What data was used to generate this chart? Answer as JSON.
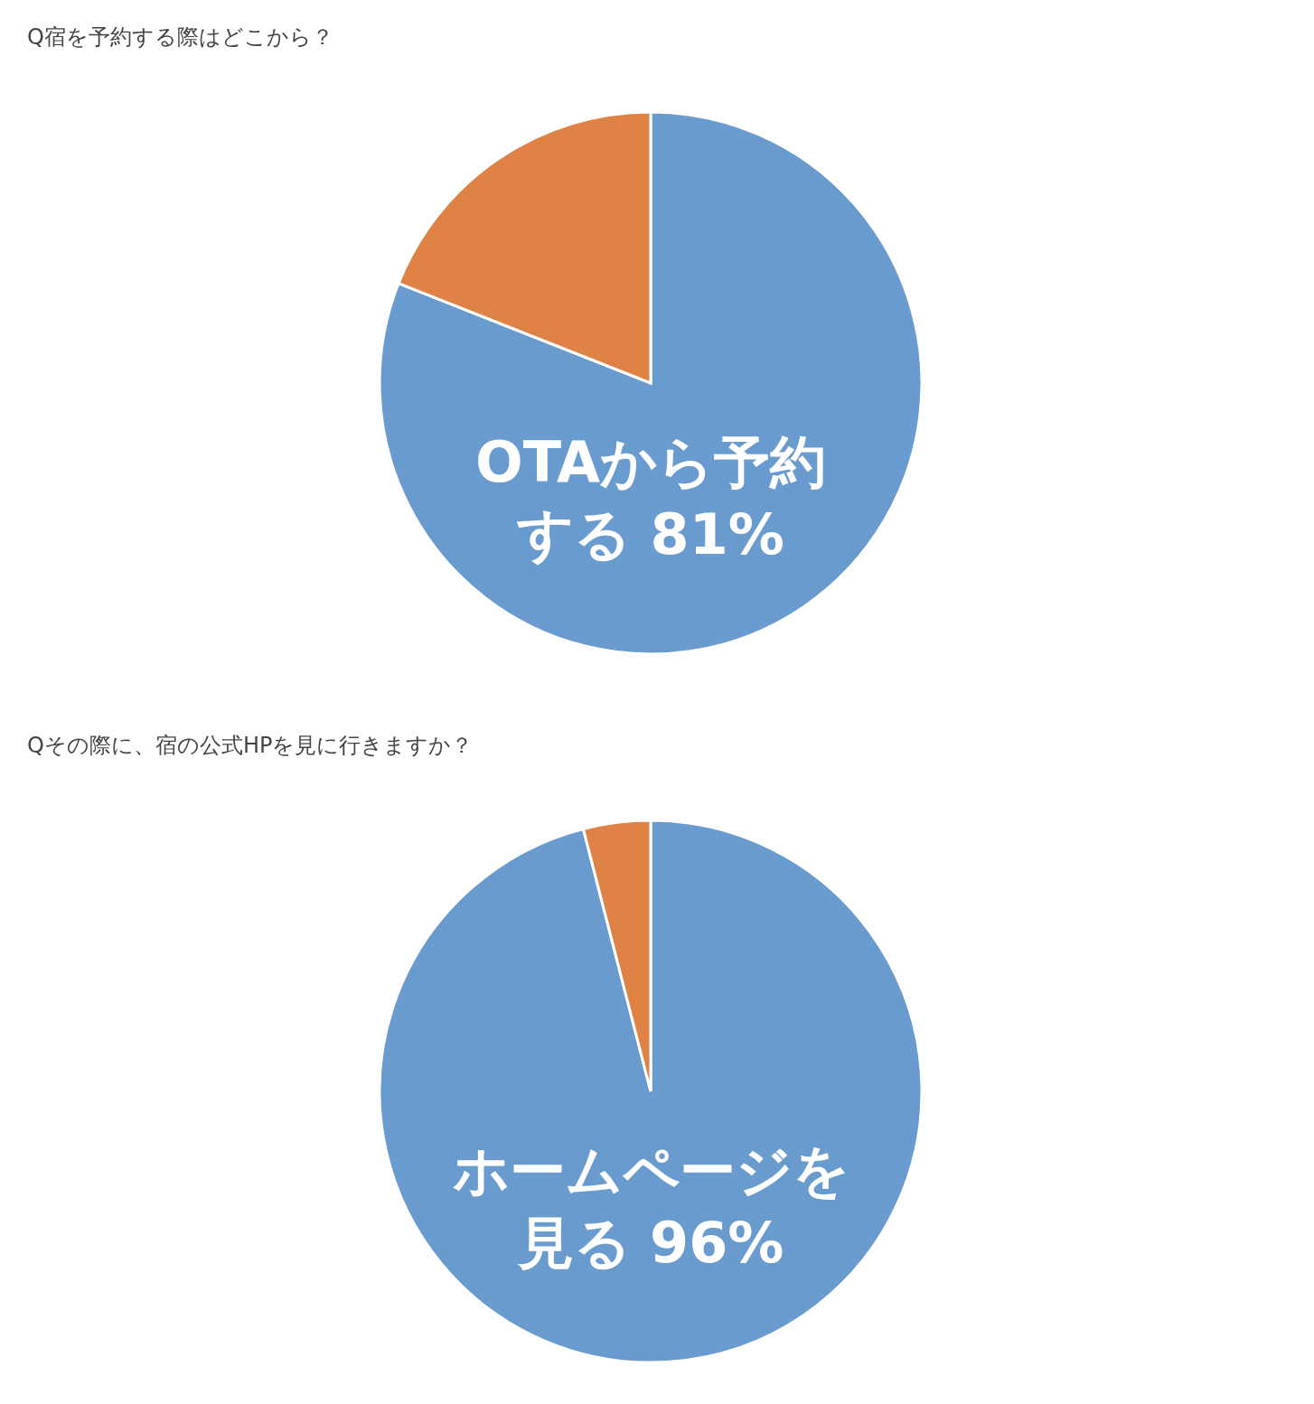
{
  "chart_data": [
    {
      "type": "pie",
      "title": "Q宿を予約する際はどこから？",
      "categories": [
        "OTAから予約する 81%",
        null
      ],
      "values": [
        81,
        19
      ],
      "colors": [
        "#6a9bcf",
        "#df8245"
      ]
    },
    {
      "type": "pie",
      "title": "Qその際に、宿の公式HPを見に行きますか？",
      "categories": [
        "ホームページを見る 96%",
        null
      ],
      "values": [
        96,
        4
      ],
      "colors": [
        "#6a9bcf",
        "#df8245"
      ]
    }
  ]
}
